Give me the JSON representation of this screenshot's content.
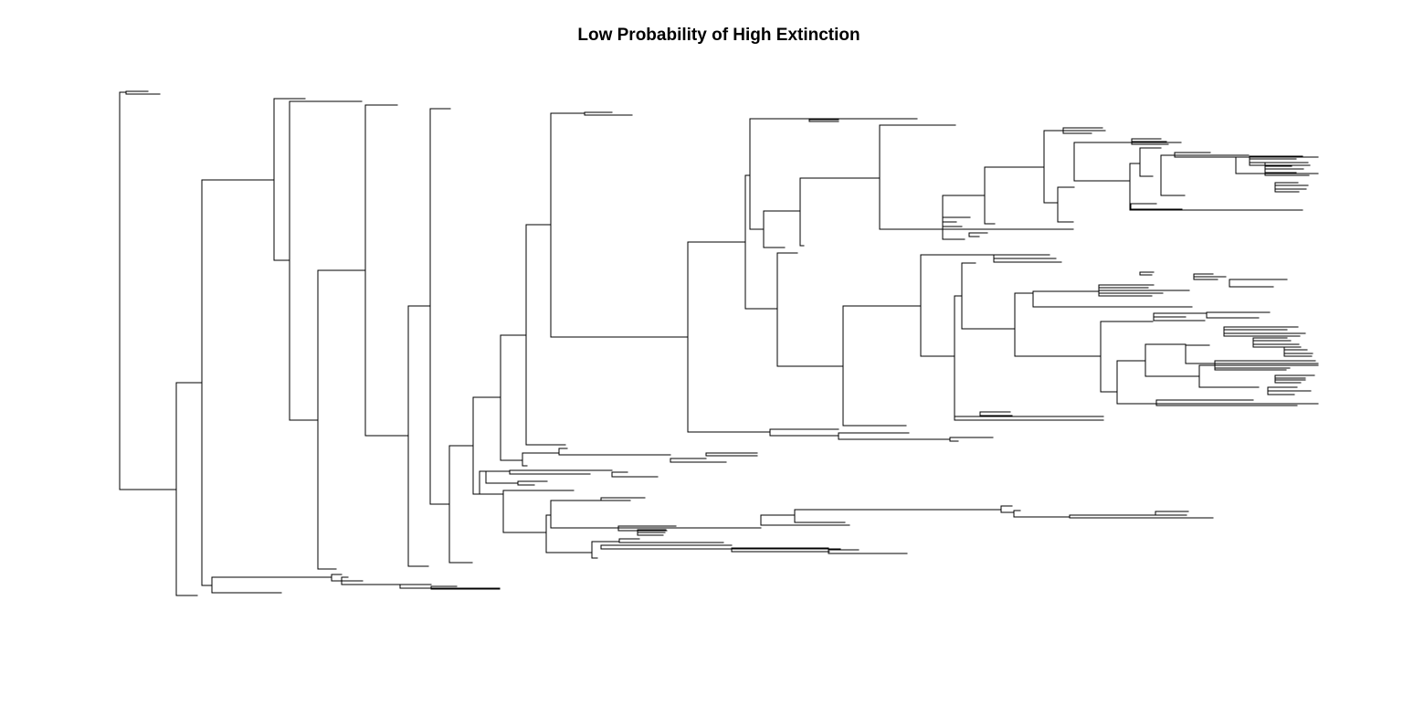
{
  "title": "Low Probability of High Extinction",
  "colors": {
    "background": "#ffffff",
    "branch": "#000000",
    "text": "#000000"
  },
  "tree": {
    "type": "phylogram",
    "orientation": "rightward",
    "tips_labeled": false,
    "seed": 7
  }
}
